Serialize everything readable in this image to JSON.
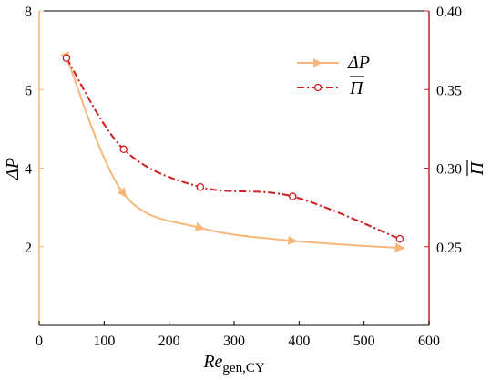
{
  "chart_data": {
    "type": "line",
    "xlabel_main": "Re",
    "xlabel_sub": "gen,CY",
    "ylabel_left": "ΔP",
    "ylabel_right": "Π",
    "xlim": [
      0,
      600
    ],
    "ylim_left": [
      0,
      8
    ],
    "ylim_right": [
      0.2,
      0.4
    ],
    "xticks": [
      "0",
      "100",
      "200",
      "300",
      "400",
      "500",
      "600"
    ],
    "yticks_left": [
      "2",
      "4",
      "6",
      "8"
    ],
    "yticks_right": [
      "0.25",
      "0.30",
      "0.35",
      "0.40"
    ],
    "legend_position": "top-right",
    "series": [
      {
        "name": "ΔP",
        "axis": "left",
        "color": "#F5B77A",
        "x": [
          42,
          130,
          248,
          390,
          555
        ],
        "y": [
          6.82,
          3.35,
          2.48,
          2.15,
          1.97
        ]
      },
      {
        "name": "Π",
        "axis": "right",
        "color": "#CC1E1E",
        "x": [
          42,
          130,
          248,
          390,
          555
        ],
        "y": [
          0.37,
          0.312,
          0.288,
          0.282,
          0.255
        ]
      }
    ]
  }
}
